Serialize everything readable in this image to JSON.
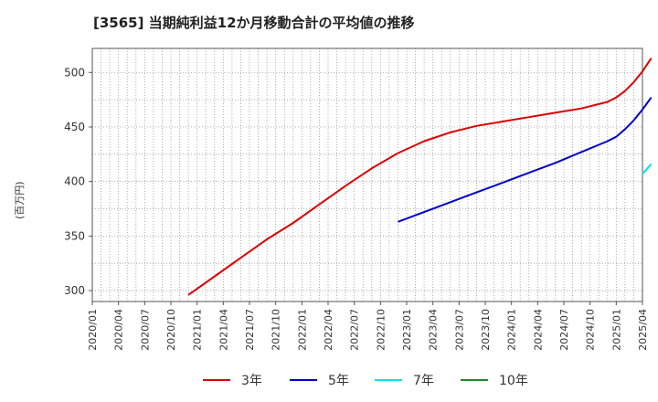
{
  "chart_data": {
    "type": "line",
    "title": "[3565]  当期純利益12か月移動合計の平均値の推移",
    "ylabel": "(百万円)",
    "xlabel": "",
    "ylim": [
      290,
      522
    ],
    "yticks": [
      300,
      350,
      400,
      450,
      500
    ],
    "x_ticks": [
      "2020/01",
      "2020/04",
      "2020/07",
      "2020/10",
      "2021/01",
      "2021/04",
      "2021/07",
      "2021/10",
      "2022/01",
      "2022/04",
      "2022/07",
      "2022/10",
      "2023/01",
      "2023/04",
      "2023/07",
      "2023/10",
      "2024/01",
      "2024/04",
      "2024/07",
      "2024/10",
      "2025/01",
      "2025/04"
    ],
    "grid": true,
    "legend_position": "bottom",
    "series": [
      {
        "name": "3年",
        "color": "#dd0000",
        "points": [
          [
            "2020/12",
            296
          ],
          [
            "2021/03",
            313
          ],
          [
            "2021/06",
            330
          ],
          [
            "2021/09",
            347
          ],
          [
            "2021/12",
            362
          ],
          [
            "2022/03",
            379
          ],
          [
            "2022/06",
            396
          ],
          [
            "2022/09",
            412
          ],
          [
            "2022/12",
            426
          ],
          [
            "2023/03",
            437
          ],
          [
            "2023/06",
            445
          ],
          [
            "2023/09",
            451
          ],
          [
            "2023/12",
            455
          ],
          [
            "2024/03",
            459
          ],
          [
            "2024/06",
            463
          ],
          [
            "2024/09",
            467
          ],
          [
            "2024/12",
            473
          ],
          [
            "2025/01",
            477
          ],
          [
            "2025/02",
            483
          ],
          [
            "2025/03",
            491
          ],
          [
            "2025/04",
            501
          ],
          [
            "2025/05",
            513
          ]
        ]
      },
      {
        "name": "5年",
        "color": "#0000cc",
        "points": [
          [
            "2022/12",
            363
          ],
          [
            "2023/03",
            372
          ],
          [
            "2023/06",
            381
          ],
          [
            "2023/09",
            390
          ],
          [
            "2023/12",
            399
          ],
          [
            "2024/03",
            408
          ],
          [
            "2024/06",
            417
          ],
          [
            "2024/09",
            427
          ],
          [
            "2024/12",
            437
          ],
          [
            "2025/01",
            441
          ],
          [
            "2025/02",
            448
          ],
          [
            "2025/03",
            456
          ],
          [
            "2025/04",
            466
          ],
          [
            "2025/05",
            477
          ]
        ]
      },
      {
        "name": "7年",
        "color": "#00e5e5",
        "points": [
          [
            "2025/04",
            407
          ],
          [
            "2025/05",
            416
          ]
        ]
      },
      {
        "name": "10年",
        "color": "#228822",
        "points": []
      }
    ]
  }
}
